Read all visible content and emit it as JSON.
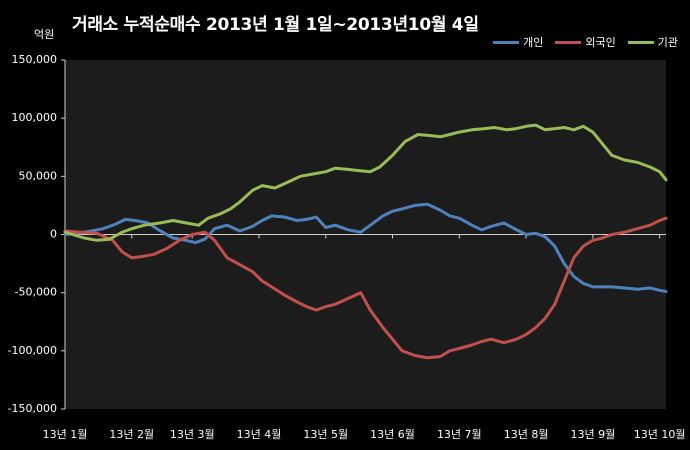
{
  "chart_data": {
    "type": "line",
    "title": "거래소 누적순매수 2013년 1월 1일~2013년10월 4일",
    "unit_label": "억원",
    "ylim": [
      -150000,
      150000
    ],
    "yticks": [
      150000,
      100000,
      50000,
      0,
      -50000,
      -100000,
      -150000
    ],
    "ytick_labels": [
      "150,000",
      "100,000",
      "50,000",
      "0",
      "-50,000",
      "-100,000",
      "-150,000"
    ],
    "xlim": [
      0,
      189
    ],
    "xticks": [
      0,
      21,
      40,
      61,
      82,
      103,
      124,
      145,
      166,
      187
    ],
    "xtick_labels": [
      "13년 1월",
      "13년 2월",
      "13년 3월",
      "13년 4월",
      "13년 5월",
      "13년 6월",
      "13년 7월",
      "13년 8월",
      "13년 9월",
      "13년 10월"
    ],
    "grid": false,
    "legend_position": "top-right",
    "background": "#000000",
    "series": [
      {
        "name": "개인",
        "color": "#4f81bd",
        "x": [
          0,
          6,
          12,
          16,
          19,
          22,
          26,
          30,
          34,
          38,
          41,
          44,
          47,
          51,
          55,
          59,
          62,
          65,
          69,
          73,
          76,
          79,
          82,
          85,
          89,
          93,
          96,
          100,
          103,
          106,
          110,
          114,
          118,
          121,
          124,
          128,
          131,
          134,
          138,
          142,
          145,
          148,
          151,
          154,
          157,
          160,
          163,
          166,
          169,
          172,
          176,
          180,
          184,
          187,
          189
        ],
        "values": [
          0,
          2000,
          5000,
          9000,
          13000,
          12000,
          10000,
          3000,
          -3000,
          -5000,
          -7000,
          -4000,
          5000,
          8000,
          3000,
          7000,
          12000,
          16000,
          15000,
          12000,
          13000,
          15000,
          6000,
          8000,
          4000,
          2000,
          8000,
          16000,
          20000,
          22000,
          25000,
          26000,
          21000,
          16000,
          14000,
          8000,
          4000,
          7000,
          10000,
          4000,
          0,
          1000,
          -2000,
          -10000,
          -25000,
          -36000,
          -42000,
          -45000,
          -45000,
          -45000,
          -46000,
          -47000,
          -46000,
          -48000,
          -49000
        ]
      },
      {
        "name": "외국인",
        "color": "#c0504d",
        "x": [
          0,
          5,
          10,
          15,
          18,
          21,
          24,
          28,
          32,
          36,
          40,
          44,
          47,
          51,
          55,
          59,
          62,
          65,
          69,
          73,
          76,
          79,
          82,
          85,
          89,
          93,
          96,
          100,
          103,
          106,
          110,
          114,
          118,
          121,
          124,
          128,
          131,
          134,
          138,
          142,
          145,
          148,
          151,
          154,
          157,
          160,
          163,
          166,
          169,
          172,
          176,
          180,
          184,
          187,
          189
        ],
        "values": [
          3000,
          2000,
          1000,
          -5000,
          -15000,
          -20000,
          -19000,
          -17000,
          -12000,
          -5000,
          0,
          2000,
          -5000,
          -20000,
          -26000,
          -32000,
          -40000,
          -45000,
          -52000,
          -58000,
          -62000,
          -65000,
          -62000,
          -60000,
          -55000,
          -50000,
          -65000,
          -80000,
          -90000,
          -100000,
          -104000,
          -106000,
          -105000,
          -100000,
          -98000,
          -95000,
          -92000,
          -90000,
          -93000,
          -90000,
          -86000,
          -80000,
          -72000,
          -60000,
          -40000,
          -20000,
          -10000,
          -5000,
          -3000,
          0,
          2000,
          5000,
          8000,
          12000,
          14000
        ]
      },
      {
        "name": "기관",
        "color": "#9bbb59",
        "x": [
          0,
          6,
          10,
          14,
          18,
          21,
          25,
          30,
          34,
          38,
          42,
          45,
          49,
          52,
          55,
          59,
          62,
          66,
          70,
          74,
          78,
          82,
          85,
          89,
          92,
          96,
          99,
          103,
          107,
          111,
          115,
          118,
          121,
          124,
          128,
          132,
          135,
          139,
          142,
          145,
          148,
          151,
          154,
          157,
          160,
          163,
          166,
          169,
          172,
          176,
          180,
          184,
          187,
          189
        ],
        "values": [
          2000,
          -3000,
          -5000,
          -4000,
          2000,
          5000,
          8000,
          10000,
          12000,
          10000,
          8000,
          14000,
          18000,
          22000,
          28000,
          38000,
          42000,
          40000,
          45000,
          50000,
          52000,
          54000,
          57000,
          56000,
          55000,
          54000,
          58000,
          68000,
          80000,
          86000,
          85000,
          84000,
          86000,
          88000,
          90000,
          91000,
          92000,
          90000,
          91000,
          93000,
          94000,
          90000,
          91000,
          92000,
          90000,
          93000,
          88000,
          78000,
          68000,
          64000,
          62000,
          58000,
          54000,
          47000
        ]
      }
    ]
  }
}
